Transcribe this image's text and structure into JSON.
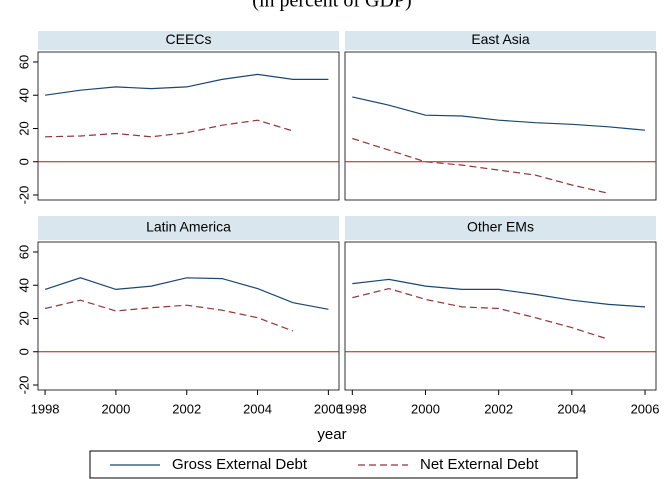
{
  "chart_data": {
    "type": "line",
    "subtitle": "(in percent of GDP)",
    "xlabel": "year",
    "x": [
      1998,
      1999,
      2000,
      2001,
      2002,
      2003,
      2004,
      2005,
      2006
    ],
    "xlim": [
      1997.8,
      2006.3
    ],
    "xticks": [
      1998,
      2000,
      2002,
      2004,
      2006
    ],
    "ylim": [
      -23,
      66
    ],
    "yticks": [
      -20,
      0,
      20,
      40,
      60
    ],
    "refline": 0,
    "refline_color": "#b2182b",
    "series": [
      {
        "name": "Gross External Debt",
        "color": "#1a476f",
        "dash": "none"
      },
      {
        "name": "Net External Debt",
        "color": "#90353b",
        "dash": "7 4"
      }
    ],
    "panels": [
      {
        "title": "CEECs",
        "series": [
          {
            "values": [
              40,
              43,
              45,
              44,
              45,
              49.5,
              52.5,
              49.5,
              49.5
            ]
          },
          {
            "values": [
              15,
              15.5,
              17,
              15,
              17.5,
              22,
              25,
              18.5,
              null
            ]
          }
        ]
      },
      {
        "title": "East Asia",
        "series": [
          {
            "values": [
              39,
              34,
              28,
              27.5,
              25,
              23.5,
              22.5,
              21,
              19
            ]
          },
          {
            "values": [
              14,
              7,
              0,
              -2,
              -5,
              -8,
              -14,
              -19,
              null
            ]
          }
        ]
      },
      {
        "title": "Latin America",
        "series": [
          {
            "values": [
              37.5,
              44.5,
              37.5,
              39.5,
              44.5,
              44,
              38,
              29.5,
              25.5
            ]
          },
          {
            "values": [
              26,
              31,
              24.5,
              26.5,
              28,
              25,
              20.5,
              12.5,
              null
            ]
          }
        ]
      },
      {
        "title": "Other EMs",
        "series": [
          {
            "values": [
              41,
              43.5,
              39.5,
              37.5,
              37.5,
              34.5,
              31,
              28.5,
              27
            ]
          },
          {
            "values": [
              32.5,
              38,
              31.5,
              27,
              26,
              20.5,
              14.5,
              7.5,
              null
            ]
          }
        ]
      }
    ]
  }
}
